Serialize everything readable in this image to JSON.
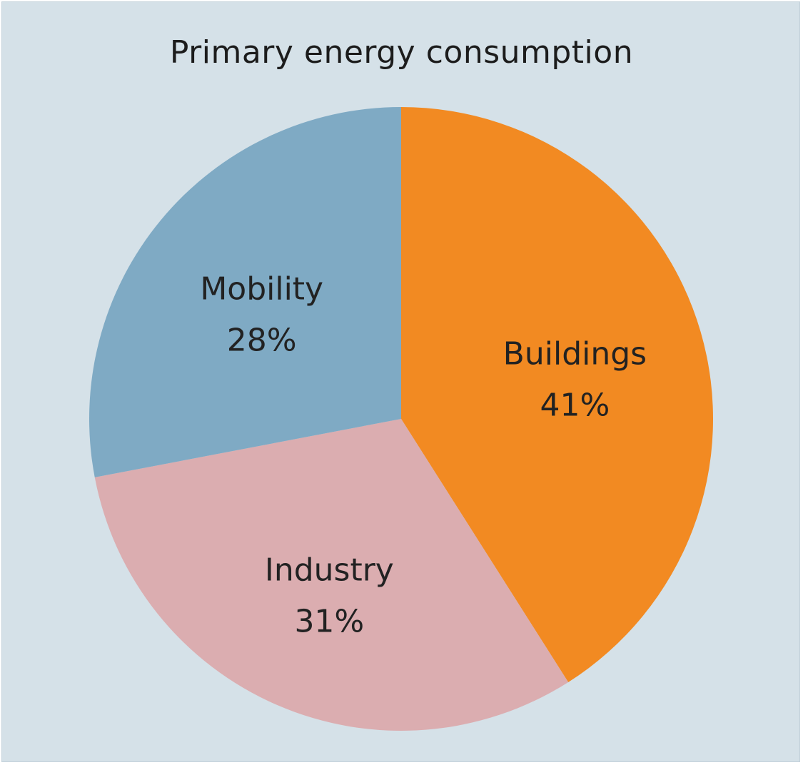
{
  "chart_data": {
    "type": "pie",
    "title": "Primary energy consumption",
    "slices": [
      {
        "label": "Buildings",
        "value": 41,
        "value_label": "41%",
        "color": "#f28a22"
      },
      {
        "label": "Industry",
        "value": 31,
        "value_label": "31%",
        "color": "#dbadb0"
      },
      {
        "label": "Mobility",
        "value": 28,
        "value_label": "28%",
        "color": "#7faac4"
      }
    ],
    "start": "12 o'clock",
    "direction": "clockwise",
    "legend": "none",
    "background": "#d5e1e8"
  }
}
